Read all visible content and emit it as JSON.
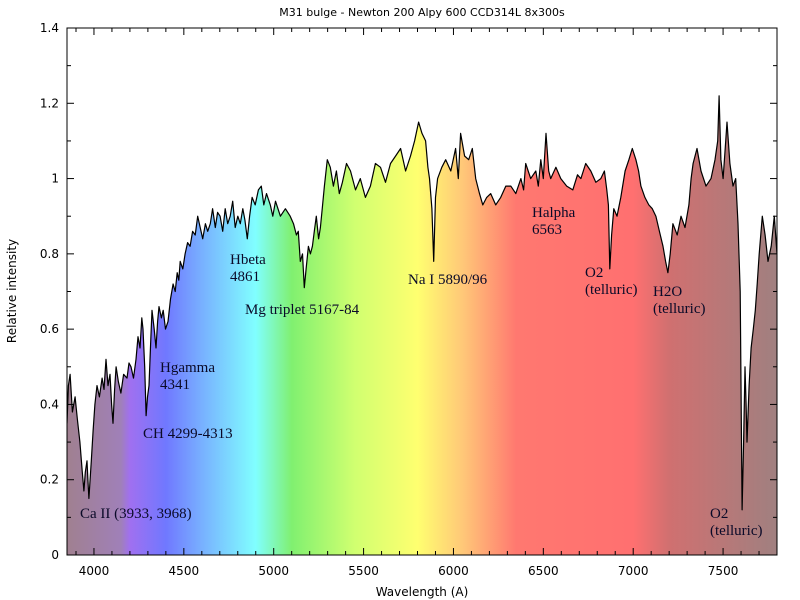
{
  "chart_data": {
    "type": "area",
    "title": "M31 bulge - Newton 200 Alpy 600 CCD314L 8x300s",
    "xlabel": "Wavelength (A)",
    "ylabel": "Relative intensity",
    "xlim": [
      3850,
      7800
    ],
    "ylim": [
      0,
      1.4
    ],
    "x_ticks": [
      4000,
      4500,
      5000,
      5500,
      6000,
      6500,
      7000,
      7500
    ],
    "x_tick_labels": [
      "4000",
      "4500",
      "5000",
      "5500",
      "6000",
      "6500",
      "7000",
      "7500"
    ],
    "y_ticks": [
      0,
      0.2,
      0.4,
      0.6,
      0.8,
      1.0,
      1.2,
      1.4
    ],
    "y_tick_labels": [
      "0",
      "0.2",
      "0.4",
      "0.6",
      "0.8",
      "1",
      "1.2",
      "1.4"
    ],
    "grid": false,
    "line_color": "#000000",
    "fill": "visible-spectrum gradient by wavelength",
    "spectrum_colors": [
      [
        3850,
        "#a08090"
      ],
      [
        4150,
        "#a080b8"
      ],
      [
        4200,
        "#a070f0"
      ],
      [
        4400,
        "#7078ff"
      ],
      [
        4600,
        "#78b0ff"
      ],
      [
        4900,
        "#80ffff"
      ],
      [
        5100,
        "#80f070"
      ],
      [
        5450,
        "#d0ff70"
      ],
      [
        5800,
        "#ffff70"
      ],
      [
        6050,
        "#ffc878"
      ],
      [
        6350,
        "#ff7870"
      ],
      [
        7000,
        "#ff7070"
      ],
      [
        7200,
        "#d07070"
      ],
      [
        7800,
        "#a08080"
      ]
    ],
    "series": [
      {
        "x": [
          3850,
          3858,
          3867,
          3880,
          3895,
          3908,
          3922,
          3935,
          3944,
          3952,
          3961,
          3966,
          3972,
          3985,
          3995,
          4005,
          4017,
          4030,
          4045,
          4056,
          4067,
          4078,
          4089,
          4098,
          4106,
          4115,
          4123,
          4136,
          4150,
          4165,
          4184,
          4195,
          4206,
          4220,
          4234,
          4245,
          4256,
          4266,
          4273,
          4282,
          4290,
          4298,
          4306,
          4315,
          4323,
          4335,
          4345,
          4354,
          4362,
          4375,
          4385,
          4398,
          4412,
          4426,
          4440,
          4452,
          4463,
          4472,
          4480,
          4494,
          4507,
          4521,
          4535,
          4549,
          4563,
          4577,
          4591,
          4605,
          4620,
          4633,
          4647,
          4660,
          4675,
          4688,
          4702,
          4716,
          4730,
          4744,
          4758,
          4772,
          4786,
          4800,
          4814,
          4828,
          4840,
          4853,
          4866,
          4880,
          4897,
          4915,
          4931,
          4945,
          4960,
          4981,
          4995,
          5010,
          5037,
          5065,
          5092,
          5110,
          5126,
          5137,
          5148,
          5160,
          5170,
          5180,
          5193,
          5204,
          5215,
          5226,
          5237,
          5250,
          5260,
          5272,
          5282,
          5298,
          5315,
          5332,
          5349,
          5365,
          5382,
          5405,
          5427,
          5455,
          5482,
          5510,
          5538,
          5566,
          5594,
          5622,
          5650,
          5678,
          5706,
          5734,
          5761,
          5784,
          5806,
          5825,
          5845,
          5858,
          5867,
          5880,
          5890,
          5900,
          5912,
          5935,
          5957,
          5985,
          6012,
          6027,
          6040,
          6062,
          6085,
          6105,
          6124,
          6145,
          6163,
          6185,
          6207,
          6235,
          6263,
          6291,
          6319,
          6347,
          6375,
          6390,
          6402,
          6430,
          6458,
          6472,
          6486,
          6500,
          6515,
          6530,
          6541,
          6570,
          6597,
          6630,
          6664,
          6690,
          6709,
          6736,
          6764,
          6792,
          6820,
          6840,
          6853,
          6862,
          6870,
          6880,
          6892,
          6910,
          6931,
          6955,
          6976,
          6995,
          7015,
          7030,
          7043,
          7065,
          7087,
          7106,
          7126,
          7146,
          7166,
          7180,
          7193,
          7206,
          7221,
          7245,
          7266,
          7288,
          7310,
          7322,
          7333,
          7355,
          7377,
          7405,
          7433,
          7455,
          7470,
          7478,
          7488,
          7500,
          7512,
          7522,
          7538,
          7555,
          7570,
          7583,
          7595,
          7606,
          7614,
          7622,
          7628,
          7633,
          7645,
          7656,
          7668,
          7679,
          7690,
          7701,
          7718,
          7734,
          7750,
          7768,
          7785,
          7800
        ],
        "y": [
          0.35,
          0.45,
          0.48,
          0.38,
          0.42,
          0.36,
          0.3,
          0.22,
          0.17,
          0.22,
          0.25,
          0.2,
          0.15,
          0.25,
          0.33,
          0.4,
          0.45,
          0.42,
          0.47,
          0.44,
          0.52,
          0.45,
          0.48,
          0.4,
          0.35,
          0.44,
          0.5,
          0.46,
          0.43,
          0.48,
          0.47,
          0.51,
          0.5,
          0.47,
          0.52,
          0.58,
          0.55,
          0.63,
          0.6,
          0.5,
          0.37,
          0.42,
          0.45,
          0.56,
          0.65,
          0.6,
          0.55,
          0.62,
          0.66,
          0.63,
          0.65,
          0.6,
          0.62,
          0.68,
          0.72,
          0.7,
          0.75,
          0.73,
          0.78,
          0.76,
          0.8,
          0.83,
          0.82,
          0.86,
          0.85,
          0.9,
          0.87,
          0.84,
          0.88,
          0.86,
          0.88,
          0.92,
          0.87,
          0.91,
          0.9,
          0.86,
          0.92,
          0.88,
          0.9,
          0.94,
          0.87,
          0.9,
          0.88,
          0.92,
          0.89,
          0.84,
          0.9,
          0.95,
          0.93,
          0.97,
          0.98,
          0.93,
          0.96,
          0.93,
          0.9,
          0.94,
          0.9,
          0.92,
          0.9,
          0.88,
          0.85,
          0.86,
          0.78,
          0.8,
          0.71,
          0.76,
          0.82,
          0.8,
          0.82,
          0.86,
          0.9,
          0.84,
          0.87,
          0.93,
          0.98,
          1.05,
          1.03,
          0.98,
          1.02,
          0.96,
          0.99,
          1.04,
          1.02,
          0.97,
          1.0,
          0.95,
          0.98,
          1.04,
          1.03,
          0.99,
          1.04,
          1.06,
          1.08,
          1.02,
          1.06,
          1.1,
          1.15,
          1.12,
          1.1,
          1.03,
          1.0,
          0.92,
          0.78,
          0.95,
          1.0,
          1.03,
          1.05,
          1.02,
          1.08,
          1.0,
          1.12,
          1.06,
          1.05,
          1.08,
          1.0,
          0.96,
          0.93,
          0.95,
          0.96,
          0.93,
          0.95,
          0.98,
          0.98,
          0.96,
          1.0,
          0.97,
          1.04,
          1.0,
          1.02,
          0.98,
          1.05,
          1.0,
          1.12,
          1.02,
          1.0,
          1.03,
          1.0,
          0.98,
          0.97,
          1.01,
          1.0,
          1.04,
          1.02,
          0.99,
          1.0,
          1.02,
          0.97,
          0.93,
          0.76,
          0.85,
          0.92,
          0.9,
          0.95,
          1.02,
          1.05,
          1.08,
          1.05,
          1.02,
          0.98,
          0.95,
          0.93,
          0.92,
          0.9,
          0.86,
          0.82,
          0.78,
          0.75,
          0.8,
          0.88,
          0.85,
          0.9,
          0.87,
          0.93,
          1.0,
          1.04,
          1.08,
          1.02,
          0.98,
          1.0,
          1.05,
          1.1,
          1.22,
          1.05,
          1.0,
          1.08,
          1.15,
          1.04,
          0.98,
          1.0,
          0.88,
          0.7,
          0.12,
          0.3,
          0.5,
          0.4,
          0.3,
          0.45,
          0.55,
          0.6,
          0.65,
          0.72,
          0.8,
          0.9,
          0.85,
          0.78,
          0.82,
          0.9,
          0.8
        ]
      }
    ],
    "annotations": [
      {
        "lines": [
          "Ca II (3933, 3968)"
        ]
      },
      {
        "lines": [
          "CH 4299-4313"
        ]
      },
      {
        "lines": [
          "Hgamma",
          "4341"
        ]
      },
      {
        "lines": [
          "Hbeta",
          "4861"
        ]
      },
      {
        "lines": [
          "Mg triplet 5167-84"
        ]
      },
      {
        "lines": [
          "Na I 5890/96"
        ]
      },
      {
        "lines": [
          "Halpha",
          "6563"
        ]
      },
      {
        "lines": [
          "O2",
          "(telluric)"
        ]
      },
      {
        "lines": [
          "H2O",
          "(telluric)"
        ]
      },
      {
        "lines": [
          "O2",
          "(telluric)"
        ]
      }
    ]
  }
}
